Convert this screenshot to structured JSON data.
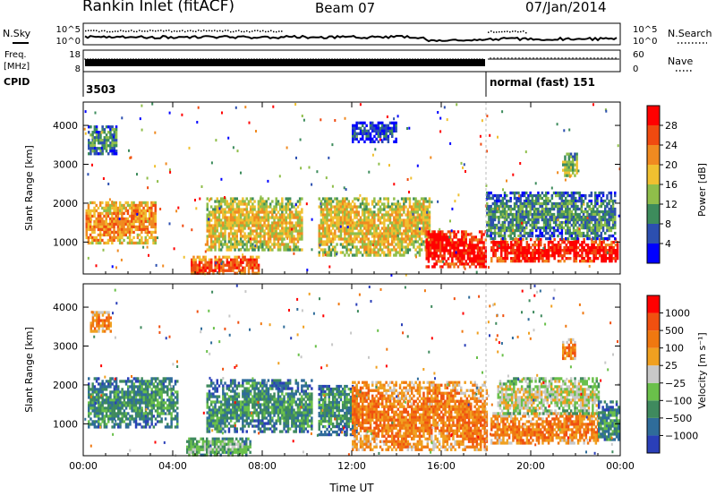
{
  "header": {
    "station": "Rankin Inlet (fitACF)",
    "beam": "Beam 07",
    "date": "07/Jan/2014"
  },
  "summary_panels": {
    "nsky_label": "N.Sky",
    "nsearch_label": "N.Search",
    "freq_label_1": "Freq.",
    "freq_label_2": "[MHz]",
    "nave_label": "Nave",
    "cpid_label": "CPID",
    "cpid_left": "3503",
    "cpid_right": "normal (fast) 151",
    "noise_ticks": [
      "10^5",
      "10^0"
    ],
    "noise_ticks_right": [
      "10^5",
      "10^0"
    ],
    "freq_ticks": [
      "18",
      "8"
    ],
    "nave_ticks": [
      "60",
      "0"
    ]
  },
  "colorbars": {
    "power": {
      "label": "Power [dB]",
      "colors": [
        "#0000ff",
        "#2c4fb0",
        "#3d8c5c",
        "#8fbe4a",
        "#f0c030",
        "#f08a20",
        "#f04a10",
        "#ff0000"
      ],
      "ticks": [
        "4",
        "8",
        "12",
        "16",
        "20",
        "24",
        "28"
      ]
    },
    "velocity": {
      "label": "Velocity [m s⁻¹]",
      "colors": [
        "#2a3fb8",
        "#2f6c9a",
        "#3f8a5e",
        "#6ac04a",
        "#c8c8c8",
        "#f0a020",
        "#f07810",
        "#f05010",
        "#ff0000"
      ],
      "ticks": [
        "1000",
        "500",
        "100",
        "25",
        "−25",
        "−100",
        "−500",
        "−1000"
      ]
    }
  },
  "chart_data": [
    {
      "type": "heatmap",
      "ylabel": "Slant Range [km]",
      "ylim": [
        180,
        4600
      ],
      "yticks": [
        "1000",
        "2000",
        "3000",
        "4000"
      ],
      "xlim": [
        "00:00",
        "24:00"
      ],
      "xticks": [
        "00:00",
        "04:00",
        "08:00",
        "12:00",
        "16:00",
        "20:00",
        "00:00"
      ],
      "colorbar": "Power [dB]",
      "regions": [
        {
          "t0": 0.1,
          "t1": 3.2,
          "r0": 1000,
          "r1": 2050,
          "level": 5
        },
        {
          "t0": 4.8,
          "t1": 7.8,
          "r0": 200,
          "r1": 650,
          "level": 6
        },
        {
          "t0": 5.5,
          "t1": 9.8,
          "r0": 800,
          "r1": 2150,
          "level": 4
        },
        {
          "t0": 10.5,
          "t1": 15.5,
          "r0": 650,
          "r1": 2150,
          "level": 4
        },
        {
          "t0": 15.3,
          "t1": 18.0,
          "r0": 350,
          "r1": 1300,
          "level": 7
        },
        {
          "t0": 18.2,
          "t1": 23.9,
          "r0": 500,
          "r1": 1100,
          "level": 7
        },
        {
          "t0": 18.0,
          "t1": 23.8,
          "r0": 1100,
          "r1": 2300,
          "level": 2
        },
        {
          "t0": 21.4,
          "t1": 22.1,
          "r0": 2700,
          "r1": 3300,
          "level": 3
        },
        {
          "t0": 0.2,
          "t1": 1.5,
          "r0": 3300,
          "r1": 4000,
          "level": 2
        },
        {
          "t0": 12.0,
          "t1": 14.0,
          "r0": 3600,
          "r1": 4100,
          "level": 1
        }
      ]
    },
    {
      "type": "heatmap",
      "ylabel": "Slant Range [km]",
      "ylim": [
        180,
        4600
      ],
      "yticks": [
        "1000",
        "2000",
        "3000",
        "4000"
      ],
      "xlim": [
        "00:00",
        "24:00"
      ],
      "xticks": [
        "00:00",
        "04:00",
        "08:00",
        "12:00",
        "16:00",
        "20:00",
        "00:00"
      ],
      "xlabel": "Time UT",
      "colorbar": "Velocity [m s⁻¹]",
      "regions": [
        {
          "t0": 0.2,
          "t1": 4.2,
          "r0": 900,
          "r1": 2200,
          "level": 2
        },
        {
          "t0": 5.5,
          "t1": 10.2,
          "r0": 800,
          "r1": 2150,
          "level": 2
        },
        {
          "t0": 4.6,
          "t1": 7.5,
          "r0": 200,
          "r1": 650,
          "level": 3
        },
        {
          "t0": 10.5,
          "t1": 12.2,
          "r0": 700,
          "r1": 2000,
          "level": 2
        },
        {
          "t0": 12.0,
          "t1": 18.0,
          "r0": 350,
          "r1": 2100,
          "level": 6
        },
        {
          "t0": 18.2,
          "t1": 23.0,
          "r0": 500,
          "r1": 1300,
          "level": 6
        },
        {
          "t0": 18.5,
          "t1": 23.0,
          "r0": 1300,
          "r1": 2200,
          "level": 4
        },
        {
          "t0": 23.0,
          "t1": 23.9,
          "r0": 600,
          "r1": 1600,
          "level": 2
        },
        {
          "t0": 21.4,
          "t1": 22.0,
          "r0": 2700,
          "r1": 3200,
          "level": 6
        },
        {
          "t0": 0.3,
          "t1": 1.2,
          "r0": 3400,
          "r1": 3900,
          "level": 6
        }
      ]
    }
  ]
}
